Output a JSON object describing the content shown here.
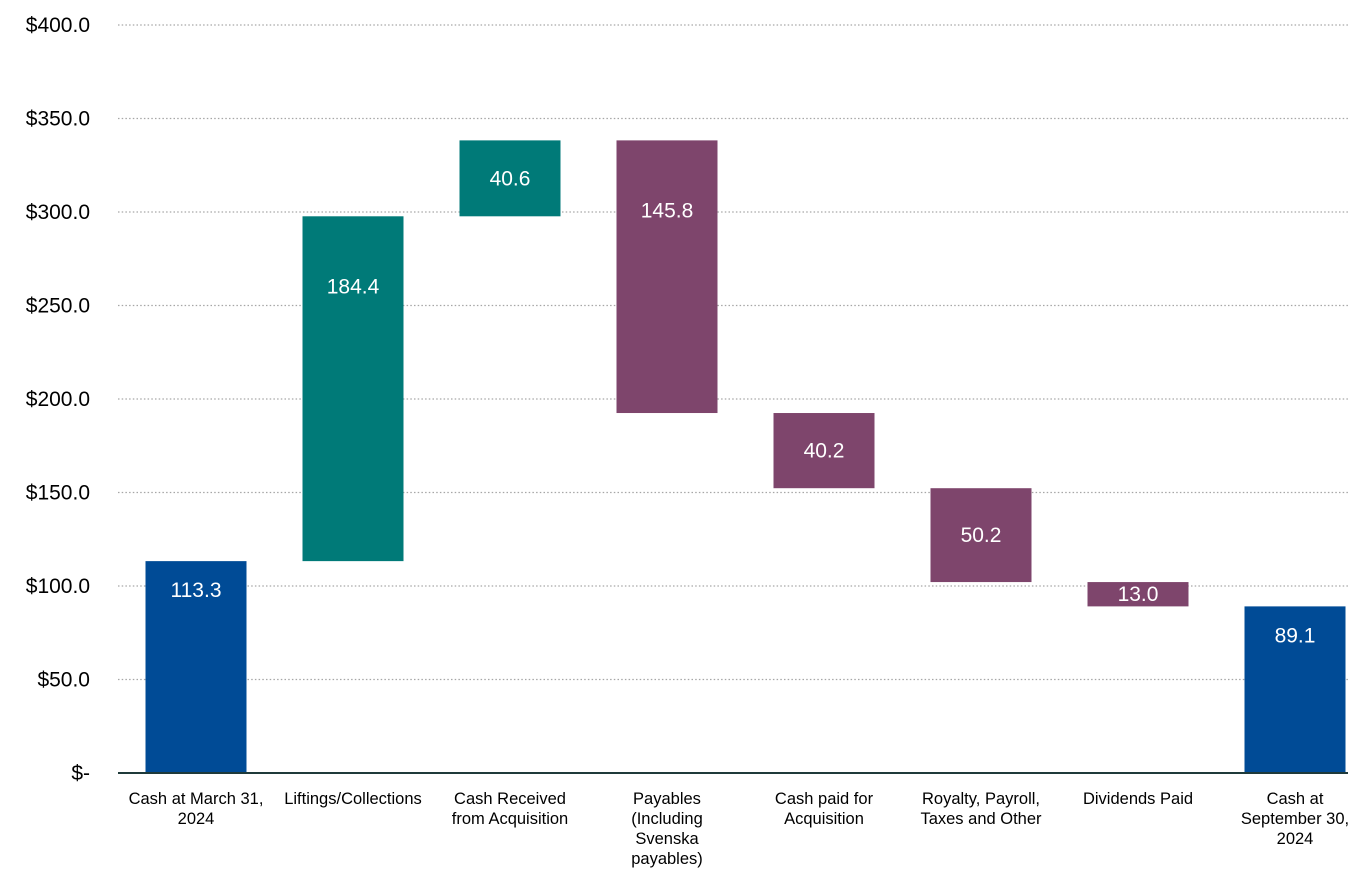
{
  "chart_data": {
    "type": "bar",
    "subtype": "waterfall",
    "title": "",
    "xlabel": "",
    "ylabel": "",
    "ylim": [
      0,
      400
    ],
    "y_ticks": [
      {
        "value": 0,
        "label": "$-"
      },
      {
        "value": 50,
        "label": "$50.0"
      },
      {
        "value": 100,
        "label": "$100.0"
      },
      {
        "value": 150,
        "label": "$150.0"
      },
      {
        "value": 200,
        "label": "$200.0"
      },
      {
        "value": 250,
        "label": "$250.0"
      },
      {
        "value": 300,
        "label": "$300.0"
      },
      {
        "value": 350,
        "label": "$350.0"
      },
      {
        "value": 400,
        "label": "$400.0"
      }
    ],
    "grid": true,
    "legend": "none",
    "colors": {
      "total": "#004b96",
      "increase": "#007a78",
      "decrease": "#7e456c"
    },
    "bars": [
      {
        "category": [
          "Cash at March 31,",
          "2024"
        ],
        "kind": "total",
        "start": 0,
        "end": 113.3,
        "label": "113.3"
      },
      {
        "category": [
          "Liftings/Collections"
        ],
        "kind": "increase",
        "start": 113.3,
        "end": 297.7,
        "label": "184.4"
      },
      {
        "category": [
          "Cash Received",
          "from Acquisition"
        ],
        "kind": "increase",
        "start": 297.7,
        "end": 338.3,
        "label": "40.6"
      },
      {
        "category": [
          "Payables",
          "(Including",
          "Svenska",
          "payables)"
        ],
        "kind": "decrease",
        "start": 338.3,
        "end": 192.5,
        "label": "145.8"
      },
      {
        "category": [
          "Cash paid for",
          "Acquisition"
        ],
        "kind": "decrease",
        "start": 192.5,
        "end": 152.3,
        "label": "40.2"
      },
      {
        "category": [
          "Royalty, Payroll,",
          "Taxes and Other"
        ],
        "kind": "decrease",
        "start": 152.3,
        "end": 102.1,
        "label": "50.2"
      },
      {
        "category": [
          "Dividends Paid"
        ],
        "kind": "decrease",
        "start": 102.1,
        "end": 89.1,
        "label": "13.0"
      },
      {
        "category": [
          "Cash at",
          "September 30,",
          "2024"
        ],
        "kind": "total",
        "start": 0,
        "end": 89.1,
        "label": "89.1"
      }
    ]
  }
}
